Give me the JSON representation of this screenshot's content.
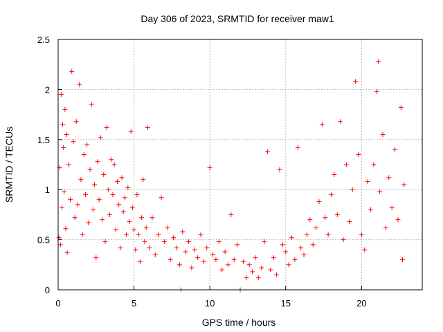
{
  "chart_data": {
    "type": "scatter",
    "title": "Day 306 of 2023, SRMTID for receiver maw1",
    "xlabel": "GPS time / hours",
    "ylabel": "SRMTID / TECUs",
    "xlim": [
      0,
      24
    ],
    "ylim": [
      0,
      2.5
    ],
    "xticks": [
      0,
      5,
      10,
      15,
      20
    ],
    "yticks": [
      0,
      0.5,
      1,
      1.5,
      2,
      2.5
    ],
    "xtick_labels": [
      "0",
      "5",
      "10",
      "15",
      "20"
    ],
    "ytick_labels": [
      "0",
      "0.5",
      "1",
      "1.5",
      "2",
      "2.5"
    ],
    "grid": true,
    "marker": "+",
    "series": [
      {
        "name": "maw1",
        "color": "#ff0000",
        "points": [
          [
            0.05,
            0.52
          ],
          [
            0.1,
            1.22
          ],
          [
            0.15,
            0.45
          ],
          [
            0.2,
            1.95
          ],
          [
            0.25,
            0.82
          ],
          [
            0.3,
            1.65
          ],
          [
            0.35,
            1.42
          ],
          [
            0.4,
            0.98
          ],
          [
            0.45,
            1.8
          ],
          [
            0.5,
            0.61
          ],
          [
            0.55,
            1.55
          ],
          [
            0.6,
            0.37
          ],
          [
            0.7,
            1.25
          ],
          [
            0.8,
            0.9
          ],
          [
            0.9,
            2.18
          ],
          [
            1.0,
            1.48
          ],
          [
            1.1,
            0.72
          ],
          [
            1.2,
            1.68
          ],
          [
            1.3,
            0.85
          ],
          [
            1.4,
            2.05
          ],
          [
            1.5,
            1.1
          ],
          [
            1.6,
            0.55
          ],
          [
            1.7,
            1.35
          ],
          [
            1.8,
            0.95
          ],
          [
            1.9,
            1.45
          ],
          [
            2.0,
            0.67
          ],
          [
            2.1,
            1.2
          ],
          [
            2.2,
            1.85
          ],
          [
            2.3,
            0.8
          ],
          [
            2.4,
            1.05
          ],
          [
            2.5,
            0.32
          ],
          [
            2.6,
            1.28
          ],
          [
            2.7,
            0.9
          ],
          [
            2.8,
            1.52
          ],
          [
            2.9,
            0.7
          ],
          [
            3.0,
            1.15
          ],
          [
            3.1,
            0.48
          ],
          [
            3.2,
            1.62
          ],
          [
            3.3,
            1.0
          ],
          [
            3.4,
            0.75
          ],
          [
            3.5,
            1.3
          ],
          [
            3.6,
            0.95
          ],
          [
            3.7,
            1.25
          ],
          [
            3.8,
            0.6
          ],
          [
            3.9,
            1.08
          ],
          [
            4.0,
            0.85
          ],
          [
            4.1,
            0.42
          ],
          [
            4.2,
            1.12
          ],
          [
            4.3,
            0.78
          ],
          [
            4.4,
            0.92
          ],
          [
            4.5,
            0.55
          ],
          [
            4.6,
            1.02
          ],
          [
            4.7,
            0.68
          ],
          [
            4.8,
            1.58
          ],
          [
            4.9,
            0.82
          ],
          [
            5.0,
            0.6
          ],
          [
            5.1,
            0.4
          ],
          [
            5.2,
            0.95
          ],
          [
            5.3,
            0.55
          ],
          [
            5.4,
            0.28
          ],
          [
            5.5,
            0.72
          ],
          [
            5.6,
            1.1
          ],
          [
            5.7,
            0.48
          ],
          [
            5.8,
            0.62
          ],
          [
            5.9,
            1.62
          ],
          [
            6.0,
            0.42
          ],
          [
            6.2,
            0.72
          ],
          [
            6.4,
            0.35
          ],
          [
            6.6,
            0.55
          ],
          [
            6.8,
            0.92
          ],
          [
            7.0,
            0.48
          ],
          [
            7.2,
            0.62
          ],
          [
            7.4,
            0.3
          ],
          [
            7.6,
            0.52
          ],
          [
            7.8,
            0.42
          ],
          [
            8.0,
            0.25
          ],
          [
            8.1,
            0.0
          ],
          [
            8.2,
            0.58
          ],
          [
            8.4,
            0.38
          ],
          [
            8.6,
            0.48
          ],
          [
            8.8,
            0.22
          ],
          [
            9.0,
            0.4
          ],
          [
            9.2,
            0.32
          ],
          [
            9.4,
            0.55
          ],
          [
            9.6,
            0.28
          ],
          [
            9.8,
            0.42
          ],
          [
            10.0,
            1.22
          ],
          [
            10.2,
            0.35
          ],
          [
            10.4,
            0.3
          ],
          [
            10.6,
            0.48
          ],
          [
            10.8,
            0.2
          ],
          [
            11.0,
            0.38
          ],
          [
            11.2,
            0.25
          ],
          [
            11.4,
            0.75
          ],
          [
            11.6,
            0.3
          ],
          [
            11.8,
            0.45
          ],
          [
            12.0,
            0.0
          ],
          [
            12.2,
            0.28
          ],
          [
            12.4,
            0.12
          ],
          [
            12.6,
            0.25
          ],
          [
            12.8,
            0.18
          ],
          [
            13.0,
            0.32
          ],
          [
            13.2,
            0.12
          ],
          [
            13.4,
            0.22
          ],
          [
            13.6,
            0.48
          ],
          [
            13.8,
            1.38
          ],
          [
            14.0,
            0.2
          ],
          [
            14.2,
            0.32
          ],
          [
            14.4,
            0.15
          ],
          [
            14.6,
            1.2
          ],
          [
            14.8,
            0.45
          ],
          [
            15.0,
            0.38
          ],
          [
            15.2,
            0.25
          ],
          [
            15.4,
            0.52
          ],
          [
            15.6,
            0.3
          ],
          [
            15.8,
            1.42
          ],
          [
            16.0,
            0.42
          ],
          [
            16.2,
            0.35
          ],
          [
            16.4,
            0.55
          ],
          [
            16.6,
            0.7
          ],
          [
            16.8,
            0.45
          ],
          [
            17.0,
            0.62
          ],
          [
            17.2,
            0.88
          ],
          [
            17.4,
            1.65
          ],
          [
            17.6,
            0.72
          ],
          [
            17.8,
            0.55
          ],
          [
            18.0,
            0.95
          ],
          [
            18.2,
            1.15
          ],
          [
            18.4,
            0.75
          ],
          [
            18.6,
            1.68
          ],
          [
            18.8,
            0.5
          ],
          [
            19.0,
            1.25
          ],
          [
            19.2,
            0.68
          ],
          [
            19.4,
            1.0
          ],
          [
            19.6,
            2.08
          ],
          [
            19.8,
            1.35
          ],
          [
            20.0,
            0.55
          ],
          [
            20.2,
            0.4
          ],
          [
            20.4,
            1.08
          ],
          [
            20.6,
            0.8
          ],
          [
            20.8,
            1.25
          ],
          [
            21.0,
            1.98
          ],
          [
            21.1,
            2.28
          ],
          [
            21.2,
            0.98
          ],
          [
            21.4,
            1.55
          ],
          [
            21.6,
            0.62
          ],
          [
            21.8,
            1.12
          ],
          [
            22.0,
            0.82
          ],
          [
            22.2,
            1.4
          ],
          [
            22.4,
            0.7
          ],
          [
            22.6,
            1.82
          ],
          [
            22.7,
            0.3
          ],
          [
            22.8,
            1.05
          ]
        ]
      }
    ]
  }
}
